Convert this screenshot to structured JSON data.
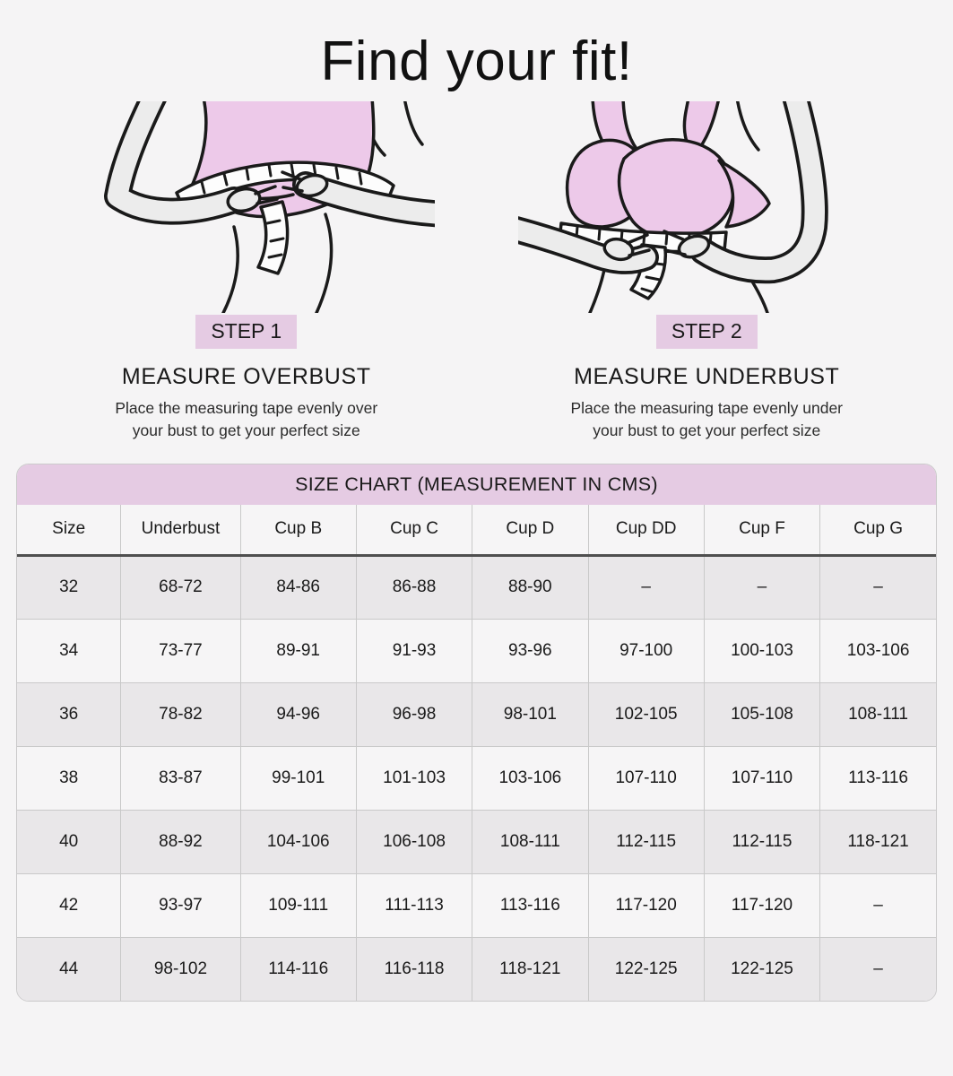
{
  "page": {
    "title": "Find your fit!"
  },
  "colors": {
    "accent_pink": "#e5cbe3",
    "bra_pink": "#edc9e9",
    "skin_gray": "#ececec",
    "line": "#1a1a1a",
    "background": "#f5f4f5",
    "row_gray": "#e9e7e9",
    "row_white": "#f6f5f6"
  },
  "steps": [
    {
      "badge": "STEP 1",
      "heading": "MEASURE OVERBUST",
      "line1": "Place the measuring tape evenly over",
      "line2": "your bust to get your perfect size"
    },
    {
      "badge": "STEP 2",
      "heading": "MEASURE UNDERBUST",
      "line1": "Place the measuring tape evenly under",
      "line2": "your bust to get your perfect size"
    }
  ],
  "size_chart": {
    "title": "SIZE CHART (MEASUREMENT IN CMS)",
    "columns": [
      "Size",
      "Underbust",
      "Cup B",
      "Cup C",
      "Cup D",
      "Cup DD",
      "Cup F",
      "Cup G"
    ],
    "rows": [
      [
        "32",
        "68-72",
        "84-86",
        "86-88",
        "88-90",
        "–",
        "–",
        "–"
      ],
      [
        "34",
        "73-77",
        "89-91",
        "91-93",
        "93-96",
        "97-100",
        "100-103",
        "103-106"
      ],
      [
        "36",
        "78-82",
        "94-96",
        "96-98",
        "98-101",
        "102-105",
        "105-108",
        "108-111"
      ],
      [
        "38",
        "83-87",
        "99-101",
        "101-103",
        "103-106",
        "107-110",
        "107-110",
        "113-116"
      ],
      [
        "40",
        "88-92",
        "104-106",
        "106-108",
        "108-111",
        "112-115",
        "112-115",
        "118-121"
      ],
      [
        "42",
        "93-97",
        "109-111",
        "111-113",
        "113-116",
        "117-120",
        "117-120",
        "–"
      ],
      [
        "44",
        "98-102",
        "114-116",
        "116-118",
        "118-121",
        "122-125",
        "122-125",
        "–"
      ]
    ]
  }
}
